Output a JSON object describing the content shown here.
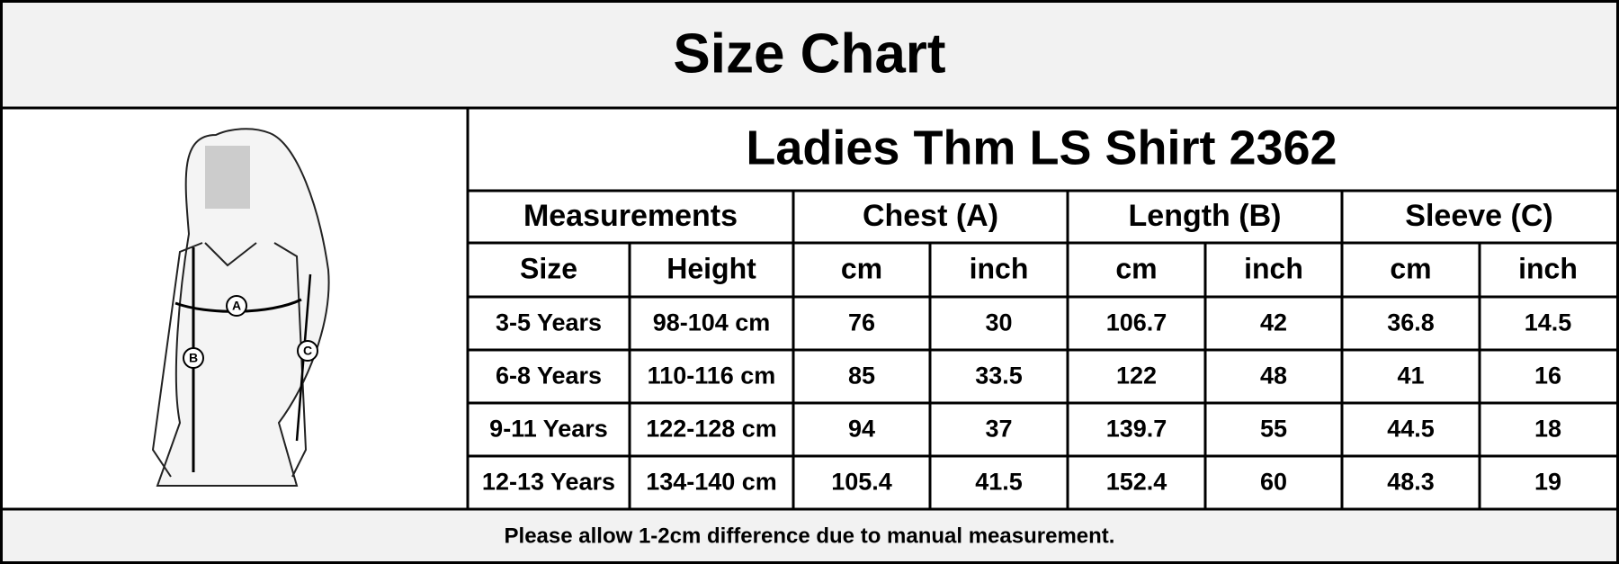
{
  "header": {
    "title": "Size Chart"
  },
  "figure": {
    "labels": [
      "A",
      "B",
      "C"
    ]
  },
  "table": {
    "title": "Ladies Thm LS Shirt 2362",
    "groups": [
      "Measurements",
      "Chest (A)",
      "Length (B)",
      "Sleeve (C)"
    ],
    "columns": [
      "Size",
      "Height",
      "cm",
      "inch",
      "cm",
      "inch",
      "cm",
      "inch"
    ],
    "rows": [
      [
        "3-5 Years",
        "98-104 cm",
        "76",
        "30",
        "106.7",
        "42",
        "36.8",
        "14.5"
      ],
      [
        "6-8 Years",
        "110-116 cm",
        "85",
        "33.5",
        "122",
        "48",
        "41",
        "16"
      ],
      [
        "9-11 Years",
        "122-128 cm",
        "94",
        "37",
        "139.7",
        "55",
        "44.5",
        "18"
      ],
      [
        "12-13 Years",
        "134-140 cm",
        "105.4",
        "41.5",
        "152.4",
        "60",
        "48.3",
        "19"
      ]
    ]
  },
  "footer": {
    "note": "Please allow 1-2cm difference due to manual measurement."
  }
}
